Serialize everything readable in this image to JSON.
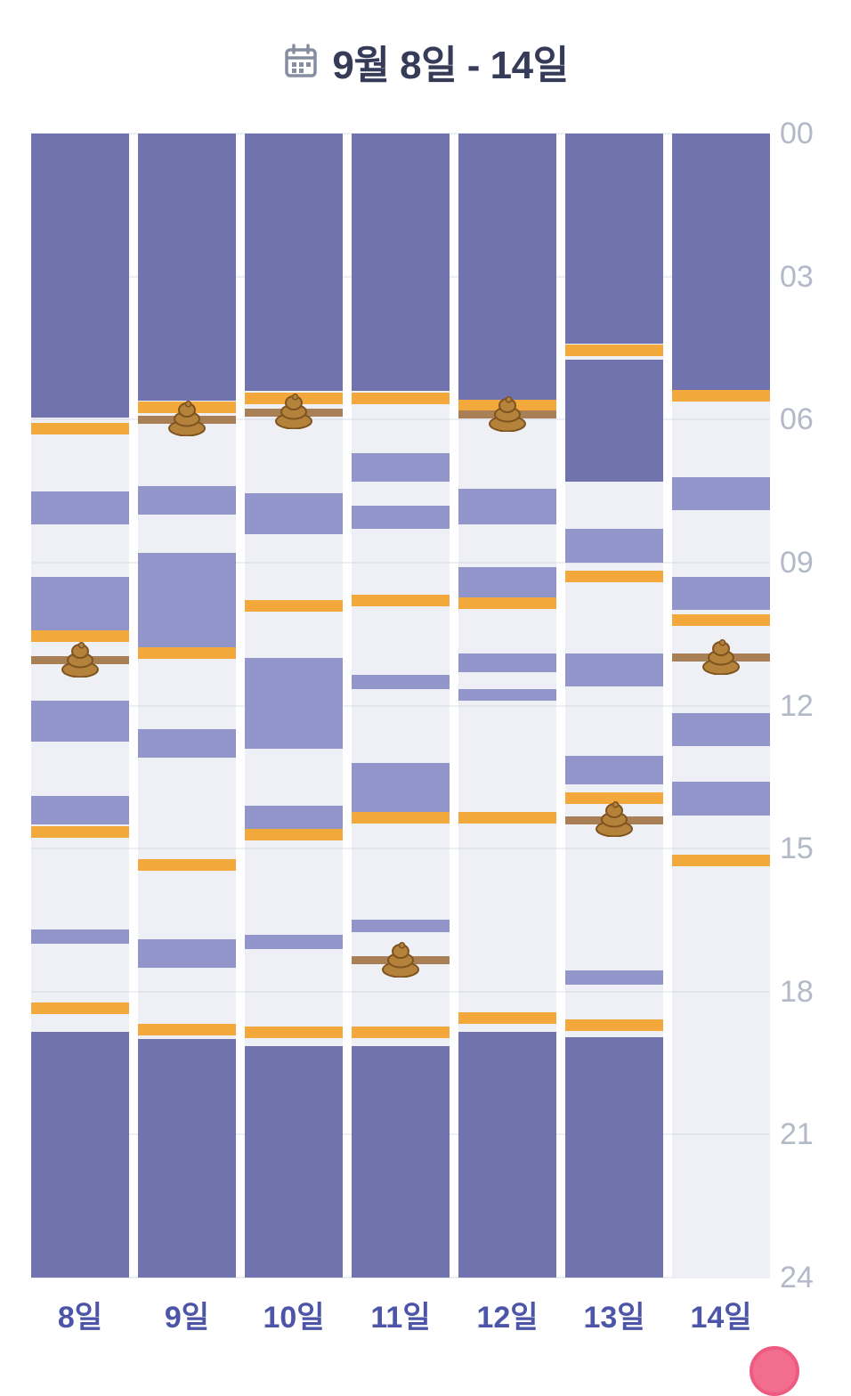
{
  "header": {
    "calendar_icon": "calendar",
    "title": "9월 8일 - 14일"
  },
  "chart_data": {
    "type": "heatmap",
    "subtype": "weekly-daily-timeline",
    "title": "9월 8일 - 14일",
    "categories": [
      "8일",
      "9일",
      "10일",
      "11일",
      "12일",
      "13일",
      "14일"
    ],
    "y_ticks": [
      "00",
      "03",
      "06",
      "09",
      "12",
      "15",
      "18",
      "21",
      "24"
    ],
    "y_range_hours": [
      0,
      24
    ],
    "legend_position": "none",
    "grid": true,
    "colors": {
      "night": "#7173ae",
      "nap": "#9295c9",
      "feed": "#f2a83a",
      "diaper": "#a97f55",
      "column_bg": "#eef0f6",
      "grid": "#e2e5ee",
      "fab": "#f36d8e"
    },
    "days": [
      {
        "label": "8일",
        "sleeps": [
          {
            "start": 0,
            "end": 5.95,
            "type": "night"
          },
          {
            "start": 7.5,
            "end": 8.2,
            "type": "nap"
          },
          {
            "start": 9.3,
            "end": 10.5,
            "type": "nap"
          },
          {
            "start": 11.9,
            "end": 12.75,
            "type": "nap"
          },
          {
            "start": 13.9,
            "end": 14.5,
            "type": "nap"
          },
          {
            "start": 16.7,
            "end": 17.0,
            "type": "nap"
          },
          {
            "start": 18.85,
            "end": 24,
            "type": "night"
          }
        ],
        "feeds": [
          6.2,
          10.55,
          14.65,
          18.35
        ],
        "poops": [
          11.05
        ]
      },
      {
        "label": "9일",
        "sleeps": [
          {
            "start": 0,
            "end": 5.6,
            "type": "night"
          },
          {
            "start": 7.4,
            "end": 8.0,
            "type": "nap"
          },
          {
            "start": 8.8,
            "end": 10.85,
            "type": "nap"
          },
          {
            "start": 12.5,
            "end": 13.1,
            "type": "nap"
          },
          {
            "start": 16.9,
            "end": 17.5,
            "type": "nap"
          },
          {
            "start": 19.0,
            "end": 24,
            "type": "night"
          }
        ],
        "feeds": [
          5.75,
          10.9,
          15.35,
          18.8
        ],
        "poops": [
          6.0
        ]
      },
      {
        "label": "10일",
        "sleeps": [
          {
            "start": 0,
            "end": 5.4,
            "type": "night"
          },
          {
            "start": 7.55,
            "end": 8.4,
            "type": "nap"
          },
          {
            "start": 11.0,
            "end": 12.9,
            "type": "nap"
          },
          {
            "start": 14.1,
            "end": 14.6,
            "type": "nap"
          },
          {
            "start": 16.8,
            "end": 17.1,
            "type": "nap"
          },
          {
            "start": 19.15,
            "end": 24,
            "type": "night"
          }
        ],
        "feeds": [
          5.55,
          9.9,
          14.7,
          18.85
        ],
        "poops": [
          5.85
        ]
      },
      {
        "label": "11일",
        "sleeps": [
          {
            "start": 0,
            "end": 5.4,
            "type": "night"
          },
          {
            "start": 6.7,
            "end": 7.3,
            "type": "nap"
          },
          {
            "start": 7.8,
            "end": 8.3,
            "type": "nap"
          },
          {
            "start": 11.35,
            "end": 11.65,
            "type": "nap"
          },
          {
            "start": 13.2,
            "end": 14.25,
            "type": "nap"
          },
          {
            "start": 16.5,
            "end": 16.75,
            "type": "nap"
          },
          {
            "start": 19.15,
            "end": 24,
            "type": "night"
          }
        ],
        "feeds": [
          5.55,
          9.8,
          14.35,
          18.85
        ],
        "poops": [
          17.35
        ]
      },
      {
        "label": "12일",
        "sleeps": [
          {
            "start": 0,
            "end": 5.6,
            "type": "night"
          },
          {
            "start": 7.45,
            "end": 8.2,
            "type": "nap"
          },
          {
            "start": 9.1,
            "end": 9.85,
            "type": "nap"
          },
          {
            "start": 10.9,
            "end": 11.3,
            "type": "nap"
          },
          {
            "start": 11.65,
            "end": 11.9,
            "type": "nap"
          },
          {
            "start": 18.85,
            "end": 24,
            "type": "night"
          }
        ],
        "feeds": [
          5.7,
          9.85,
          14.35,
          18.55
        ],
        "poops": [
          5.9
        ]
      },
      {
        "label": "13일",
        "sleeps": [
          {
            "start": 0,
            "end": 4.4,
            "type": "night"
          },
          {
            "start": 4.75,
            "end": 7.3,
            "type": "night"
          },
          {
            "start": 8.3,
            "end": 9.0,
            "type": "nap"
          },
          {
            "start": 10.9,
            "end": 11.6,
            "type": "nap"
          },
          {
            "start": 13.05,
            "end": 13.65,
            "type": "nap"
          },
          {
            "start": 17.55,
            "end": 17.85,
            "type": "nap"
          },
          {
            "start": 18.95,
            "end": 24,
            "type": "night"
          }
        ],
        "feeds": [
          4.55,
          9.3,
          13.95,
          18.7
        ],
        "poops": [
          14.4
        ]
      },
      {
        "label": "14일",
        "sleeps": [
          {
            "start": 0,
            "end": 5.4,
            "type": "night"
          },
          {
            "start": 7.2,
            "end": 7.9,
            "type": "nap"
          },
          {
            "start": 9.3,
            "end": 10.0,
            "type": "nap"
          },
          {
            "start": 12.15,
            "end": 12.85,
            "type": "nap"
          },
          {
            "start": 13.6,
            "end": 14.3,
            "type": "nap"
          }
        ],
        "feeds": [
          5.5,
          10.2,
          15.25
        ],
        "poops": [
          11.0
        ]
      }
    ]
  }
}
